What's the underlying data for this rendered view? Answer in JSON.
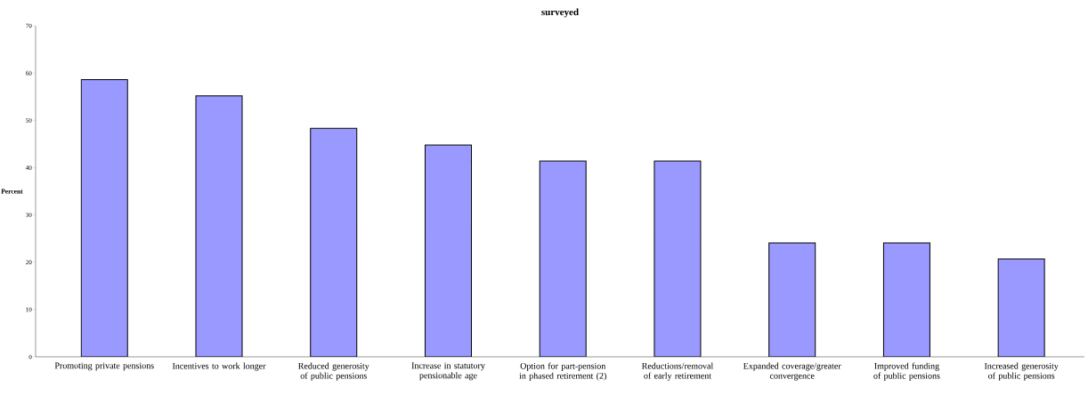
{
  "chart_data": {
    "type": "bar",
    "title": "surveyed",
    "ylabel": "Percent",
    "categories": [
      "Promoting private pensions",
      "Incentives to work longer",
      "Reduced generosity of public pensions",
      "Increase in statutory pensionable age",
      "Option for part-pension in phased retirement (2)",
      "Reductions/removal of early retirement",
      "Expanded coverage/greater convergence",
      "Improved funding of public pensions",
      "Increased generosity of public pensions"
    ],
    "values": [
      58.6,
      55.2,
      48.3,
      44.8,
      41.4,
      41.4,
      24.1,
      24.1,
      20.7
    ],
    "color": "#9999ff",
    "ylim": [
      0,
      70
    ],
    "yticks": [
      0,
      10,
      20,
      30,
      40,
      50,
      60,
      70
    ],
    "grid": false
  }
}
